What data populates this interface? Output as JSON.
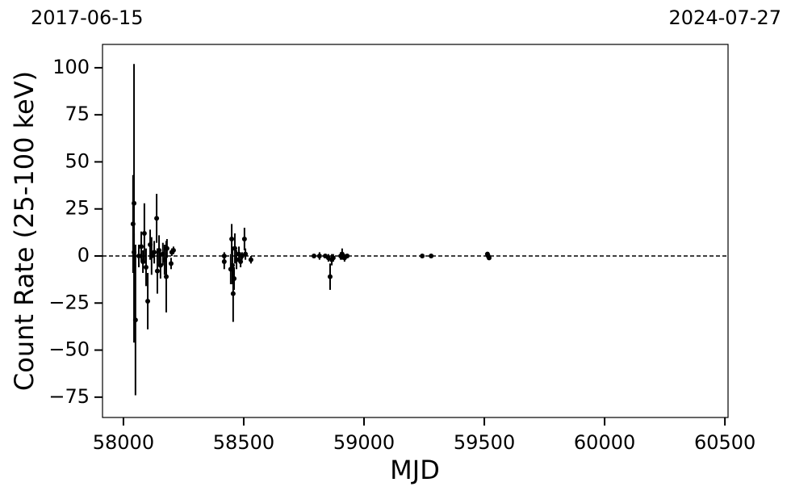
{
  "chart_data": {
    "type": "errorbar",
    "xlabel": "MJD",
    "ylabel": "Count Rate (25-100 keV)",
    "top_left_label": "2017-06-15",
    "top_right_label": "2024-07-27",
    "xlim": [
      57913,
      60513
    ],
    "ylim": [
      -85.8,
      112.4
    ],
    "xticks": [
      58000,
      58500,
      59000,
      59500,
      60000,
      60500
    ],
    "yticks": [
      {
        "value": -75,
        "label": "−75"
      },
      {
        "value": -50,
        "label": "−50"
      },
      {
        "value": -25,
        "label": "−25"
      },
      0,
      25,
      50,
      75,
      100
    ],
    "reference_line": 0,
    "series": [
      {
        "color": "#000000",
        "x": [
          58040,
          58044,
          58050,
          58044,
          58064,
          58074,
          58081,
          58087,
          58094,
          58101,
          58111,
          58117,
          58128,
          58138,
          58141,
          58148,
          58154,
          58164,
          58171,
          58178,
          58181,
          58198,
          58201,
          58208,
          58419,
          58419,
          58446,
          58450,
          58453,
          58456,
          58460,
          58463,
          58470,
          58480,
          58487,
          58493,
          58503,
          58507,
          58530,
          58792,
          58815,
          58839,
          58852,
          58859,
          58866,
          58872,
          58903,
          58909,
          58919,
          58930,
          59242,
          59279,
          59513,
          59516,
          59520
        ],
        "values": [
          17,
          28,
          -34,
          2,
          0,
          5,
          -3,
          12,
          -6,
          -24,
          6,
          0,
          2,
          20,
          -8,
          3,
          -5,
          1,
          -2,
          -11,
          4,
          -4,
          2,
          3,
          -3,
          0,
          -7,
          9,
          -5,
          -20,
          -12,
          4,
          -2,
          1,
          -3,
          0,
          9,
          1,
          -2,
          0,
          0,
          0,
          -1,
          -11,
          -2,
          -1,
          0,
          1,
          -1,
          0,
          0,
          0,
          1,
          0,
          -1
        ],
        "errors": [
          26,
          74,
          40,
          10,
          6,
          8,
          6,
          16,
          10,
          15,
          8,
          10,
          6,
          13,
          12,
          8,
          7,
          6,
          8,
          19,
          5,
          3,
          2,
          2,
          4,
          2,
          8,
          8,
          10,
          15,
          6,
          8,
          5,
          4,
          3,
          2,
          6,
          3,
          2,
          1,
          2,
          1,
          2,
          7,
          3,
          2,
          2,
          3,
          2,
          1,
          1,
          1,
          1,
          2,
          1
        ]
      }
    ]
  }
}
